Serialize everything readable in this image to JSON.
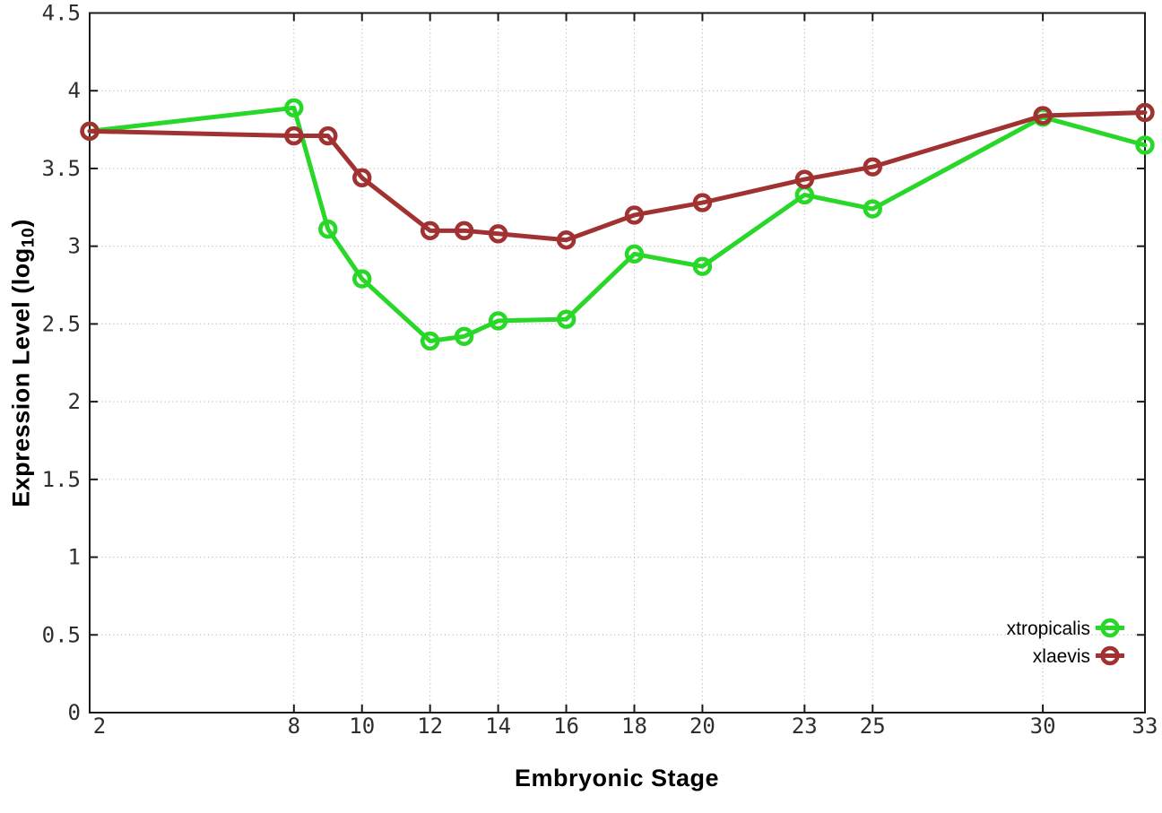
{
  "figure": {
    "background": "#ffffff",
    "frame_color": "#1a1a1a",
    "grid_color": "#b5b5b5",
    "tick_label_color": "#2e2e2e",
    "legend_text_color": "#000000"
  },
  "chart_data": {
    "type": "line",
    "title": "",
    "xlabel": "Embryonic Stage",
    "ylabel": "Expression Level (log10)",
    "ylabel_parts": {
      "main": "Expression Level (log",
      "sub": "10",
      "close": ")"
    },
    "x": [
      2,
      8,
      9,
      10,
      12,
      13,
      14,
      16,
      18,
      20,
      23,
      25,
      30,
      33
    ],
    "series": [
      {
        "name": "xtropicalis",
        "color": "#28d728",
        "values": [
          3.74,
          3.89,
          3.11,
          2.79,
          2.39,
          2.42,
          2.52,
          2.53,
          2.95,
          2.87,
          3.33,
          3.24,
          3.83,
          3.65
        ]
      },
      {
        "name": "xlaevis",
        "color": "#a13232",
        "values": [
          3.74,
          3.71,
          3.71,
          3.44,
          3.1,
          3.1,
          3.08,
          3.04,
          3.2,
          3.28,
          3.43,
          3.51,
          3.84,
          3.86
        ]
      }
    ],
    "xticks": {
      "values": [
        2,
        8,
        10,
        12,
        14,
        16,
        18,
        20,
        23,
        25,
        30,
        33
      ],
      "labels": [
        "2",
        "8",
        "10",
        "12",
        "14",
        "16",
        "18",
        "20",
        "23",
        "25",
        "30",
        "33"
      ]
    },
    "yticks": {
      "values": [
        0,
        0.5,
        1,
        1.5,
        2,
        2.5,
        3,
        3.5,
        4,
        4.5
      ],
      "labels": [
        "0",
        "0.5",
        "1",
        "1.5",
        "2",
        "2.5",
        "3",
        "3.5",
        "4",
        "4.5"
      ]
    },
    "xlim": [
      2,
      33
    ],
    "ylim": [
      0,
      4.5
    ],
    "grid": "dotted",
    "marker": "open-circle",
    "legend": {
      "position": "bottom-right",
      "entries": [
        "xtropicalis",
        "xlaevis"
      ]
    }
  }
}
